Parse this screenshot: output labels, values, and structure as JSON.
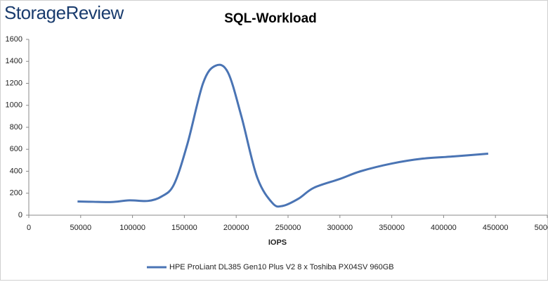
{
  "logo": "StorageReview",
  "chart_data": {
    "type": "line",
    "title": "SQL-Workload",
    "xlabel": "IOPS",
    "x": [
      47000,
      62000,
      80000,
      97000,
      115000,
      128000,
      140000,
      153000,
      168000,
      180000,
      192000,
      205000,
      220000,
      235000,
      245000,
      260000,
      275000,
      300000,
      320000,
      350000,
      380000,
      410000,
      443000
    ],
    "series": [
      {
        "name": "HPE ProLiant DL385 Gen10 Plus V2 8 x Toshiba PX04SV 960GB",
        "color": "#4a74b4",
        "values": [
          125,
          122,
          120,
          135,
          130,
          170,
          280,
          650,
          1200,
          1360,
          1300,
          900,
          350,
          110,
          85,
          150,
          250,
          330,
          400,
          470,
          515,
          535,
          560
        ]
      }
    ],
    "xlim": [
      0,
      500000
    ],
    "xticks": [
      0,
      50000,
      100000,
      150000,
      200000,
      250000,
      300000,
      350000,
      400000,
      450000,
      500000
    ],
    "ylim": [
      0,
      1600
    ],
    "yticks": [
      0,
      200,
      400,
      600,
      800,
      1000,
      1200,
      1400,
      1600
    ],
    "grid": false,
    "legend": "bottom"
  }
}
